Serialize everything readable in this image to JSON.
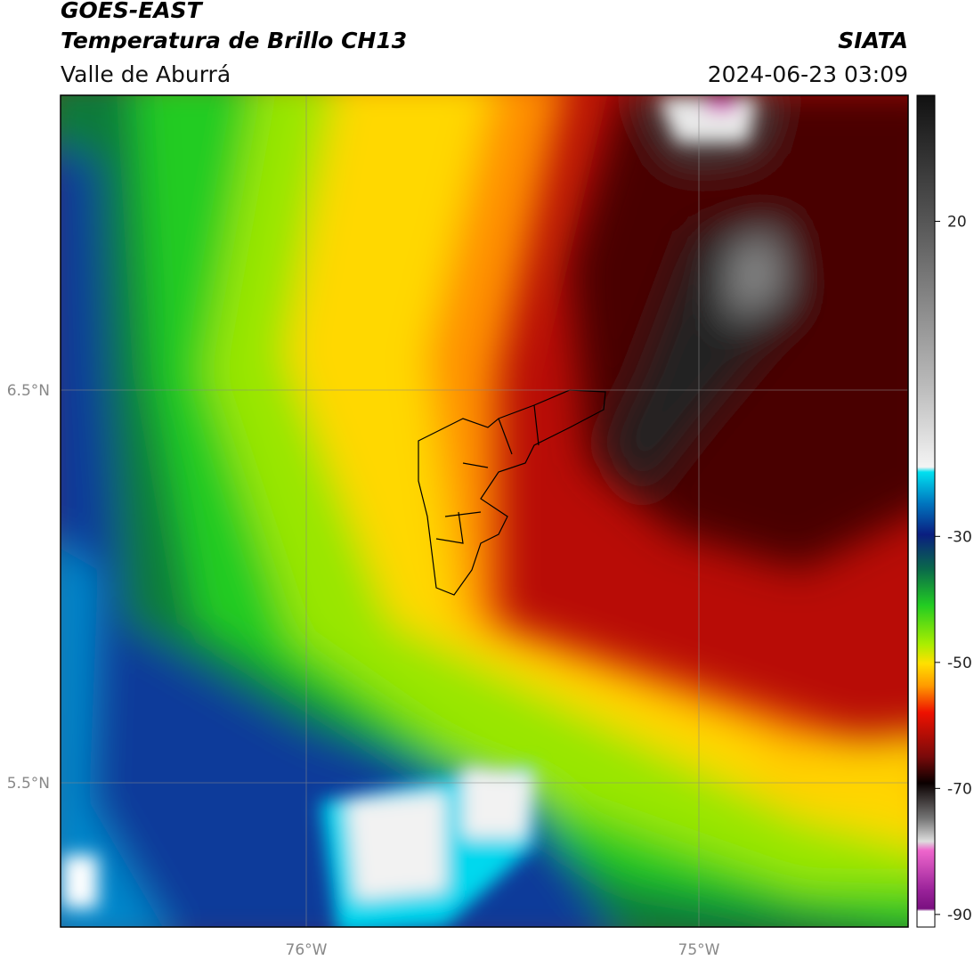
{
  "header": {
    "satellite": "GOES-EAST",
    "product": "Temperatura de Brillo CH13",
    "region": "Valle de Aburrá",
    "agency": "SIATA",
    "datetime": "2024-06-23 03:09"
  },
  "map": {
    "lat_labels": [
      "6.5°N",
      "5.5°N"
    ],
    "lon_labels": [
      "76°W",
      "75°W"
    ]
  },
  "colorbar": {
    "range": [
      -92,
      40
    ],
    "ticks": [
      20,
      -30,
      -50,
      -70,
      -90
    ]
  }
}
